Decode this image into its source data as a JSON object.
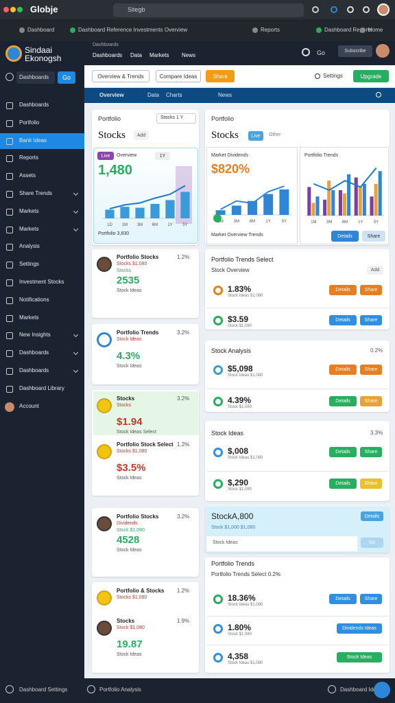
{
  "browser": {
    "tab": "Globje",
    "address": "Sitegb",
    "bookmarks": [
      "Dashboard",
      "Dashboard Reference Investments Overview",
      "Reports",
      "Dashboard Reports",
      "Home"
    ]
  },
  "sidebar": {
    "brand": "Sindaai",
    "brand_sub": "Ekonogsh",
    "search": "Dashboards",
    "search_badge": "Go",
    "active": 2,
    "items": [
      {
        "label": "Dashboards"
      },
      {
        "label": "Portfolio"
      },
      {
        "label": "Bank Ideas"
      },
      {
        "label": "Reports"
      },
      {
        "label": "Assets"
      },
      {
        "label": "Share Trends",
        "chevron": true
      },
      {
        "label": "Markets",
        "chevron": true
      },
      {
        "label": "Markets",
        "chevron": true
      },
      {
        "label": "Analysis"
      },
      {
        "label": "Settings"
      },
      {
        "label": "Investment Stocks"
      },
      {
        "label": "Notifications"
      },
      {
        "label": "Markets"
      },
      {
        "label": "New Insights",
        "chevron": true
      },
      {
        "label": "Dashboards",
        "chevron": true
      },
      {
        "label": "Dashboards",
        "chevron": true
      },
      {
        "label": "Dashboard Library"
      },
      {
        "label": "Account"
      }
    ]
  },
  "header": {
    "nav_top": "Dashboards",
    "nav": [
      "Dashboards",
      "Data",
      "Markets",
      "News"
    ],
    "lang": "Go",
    "subscribe": "Subscribe"
  },
  "toolbar": {
    "buttons": [
      "Overview & Trends",
      "Compare Ideas"
    ],
    "upgrade": "Share",
    "settings": "Settings",
    "action": "Upgrade"
  },
  "tabs": [
    "Overview",
    "Data",
    "Charts",
    "News"
  ],
  "portfolio_left": {
    "title": "Portfolio",
    "dropdown": "Stocks 1 Y",
    "heading": "Stocks",
    "add": "Add",
    "panel": {
      "badge": "Live",
      "title": "Overview",
      "range": "1Y",
      "value": "1,480",
      "footer": "Portfolio 3,830",
      "chart": {
        "type": "bar",
        "categories": [
          "1D",
          "1M",
          "3M",
          "6M",
          "1Y",
          "5Y"
        ],
        "values": [
          18,
          24,
          22,
          30,
          38,
          55
        ],
        "line": [
          20,
          28,
          32,
          42,
          50,
          68
        ],
        "ylim": [
          0,
          80
        ],
        "color": "#3a9bd9",
        "line_color": "#1e78c8"
      }
    }
  },
  "portfolio_right": {
    "title": "Portfolio",
    "heading": "Stocks",
    "badge": "Live",
    "other": "Other",
    "footer": "Market Overview Trends",
    "details": "Details",
    "share": "Share",
    "dividends": {
      "title": "Market Dividends",
      "value": "$820%",
      "chart": {
        "type": "bar",
        "categories": [
          "1M",
          "3M",
          "6M",
          "1Y",
          "5Y"
        ],
        "values": [
          10,
          20,
          30,
          45,
          55
        ],
        "line": [
          12,
          30,
          25,
          50,
          62
        ],
        "ylim": [
          0,
          80
        ],
        "color": "#2f86d6",
        "line_color": "#2f86d6"
      }
    },
    "trends": {
      "title": "Portfolio Trends",
      "chart": {
        "type": "grouped-bar",
        "categories": [
          "1M",
          "3M",
          "6M",
          "1Y",
          "5Y"
        ],
        "ylim": [
          0,
          80
        ],
        "series": [
          {
            "color": "#7b3fa0",
            "values": [
              45,
              25,
              40,
              60,
              30
            ]
          },
          {
            "color": "#e8a23a",
            "values": [
              20,
              55,
              35,
              45,
              50
            ]
          },
          {
            "color": "#2f86d6",
            "values": [
              30,
              40,
              65,
              50,
              70
            ]
          }
        ],
        "line": [
          50,
          40,
          55,
          45,
          75
        ],
        "line_color": "#1e78c8"
      }
    }
  },
  "stock_cards": [
    {
      "entries": [
        {
          "icon": "avatar",
          "title": "Portfolio Stocks",
          "sub": "Stocks $1,080",
          "sub2": "Stocks",
          "pct": "1.2%",
          "value": "2535",
          "note": "Stock Ideas"
        }
      ]
    },
    {
      "entries": [
        {
          "icon": "logo",
          "title": "Portfolio Trends",
          "sub": "Stock Ideas",
          "pct": "3.2%",
          "value": "4.3%",
          "note": "Stock Ideas"
        }
      ]
    },
    {
      "entries": [
        {
          "icon": "coin",
          "title": "Stocks",
          "sub": "Stocks",
          "pct": "3.2%",
          "value": "$1.94",
          "note": "Stock Ideas Select",
          "highlight": true
        },
        {
          "icon": "coin",
          "title": "Portfolio Stock Select",
          "sub": "Stocks $1,080",
          "pct": "1.2%",
          "value": "$3.5%",
          "note": "Stock Ideas"
        }
      ]
    },
    {
      "entries": [
        {
          "icon": "avatar",
          "title": "Portfolio Stocks",
          "sub": "Dividends",
          "sub2": "Stock $1,080",
          "pct": "3.2%",
          "value": "4528",
          "note": "Stock Ideas"
        }
      ]
    },
    {
      "entries": [
        {
          "icon": "coin",
          "title": "Portfolio & Stocks",
          "sub": "Stocks $1,080",
          "pct": "1.2%"
        },
        {
          "icon": "avatar",
          "title": "Stocks",
          "sub": "Stock $1,080",
          "pct": "1.9%",
          "value": "19.87",
          "note": "Stock Ideas"
        }
      ]
    }
  ],
  "list_cards": [
    {
      "title": "Portfolio Trends Select",
      "sub": "Stock Overview",
      "badge": "Add",
      "rows": [
        {
          "icon": "#e67e22",
          "value": "1.83%",
          "sub": "Stock Ideas $1,080",
          "buttons": [
            {
              "label": "Details",
              "color": "#e67e22"
            },
            {
              "label": "Share",
              "color": "#e67e22"
            }
          ]
        },
        {
          "icon": "#27ae60",
          "value": "$3.59",
          "sub": "Stock $1,080",
          "buttons": [
            {
              "label": "Details",
              "color": "#2f8fe0"
            },
            {
              "label": "Share",
              "color": "#2f8fe0"
            }
          ]
        }
      ]
    },
    {
      "title": "Stock Analysis",
      "pct": "0.2%",
      "rows": [
        {
          "icon": "#3aa0c8",
          "value": "$5,098",
          "sub": "Stock Ideas $1,080",
          "buttons": [
            {
              "label": "Details",
              "color": "#e67e22"
            },
            {
              "label": "Share",
              "color": "#e67e22"
            }
          ]
        },
        {
          "icon": "#27ae60",
          "value": "4.39%",
          "sub": "Stock $1,080",
          "buttons": [
            {
              "label": "Details",
              "color": "#27ae60"
            },
            {
              "label": "Share",
              "color": "#e8a23a"
            }
          ]
        }
      ]
    },
    {
      "title": "Stock Ideas",
      "pct": "3.3%",
      "rows": [
        {
          "icon": "#2f8fe0",
          "value": "$,008",
          "sub": "Stock Ideas $1,080",
          "buttons": [
            {
              "label": "Details",
              "color": "#27ae60"
            },
            {
              "label": "Share",
              "color": "#27ae60"
            }
          ]
        },
        {
          "icon": "#27ae60",
          "value": "$,290",
          "sub": "Stock $1,080",
          "buttons": [
            {
              "label": "Details",
              "color": "#27ae60"
            },
            {
              "label": "Share",
              "color": "#e8c030"
            }
          ]
        }
      ]
    },
    {
      "title": "Portfolio Trends",
      "sub": "Portfolio Trends Select 0.2%",
      "rows": [
        {
          "icon": "#27ae60",
          "value": "18.36%",
          "sub": "Stock Ideas $1,080",
          "buttons": [
            {
              "label": "Details",
              "color": "#2f8fe0"
            },
            {
              "label": "Share",
              "color": "#2f8fe0"
            }
          ]
        },
        {
          "icon": "#2f8fe0",
          "value": "1.80%",
          "sub": "Stock $1,080",
          "buttons": [
            {
              "label": "Dividends Ideas",
              "color": "#2f8fe0"
            }
          ]
        },
        {
          "icon": "#2f8fe0",
          "value": "4,358",
          "sub": "Stock Ideas $1,080",
          "buttons": [
            {
              "label": "Stock Ideas",
              "color": "#27ae60"
            }
          ]
        }
      ]
    }
  ],
  "highlight_card": {
    "title": "StockA,800",
    "sub": "Stock $1,000 $1,080",
    "button": "Details",
    "search": "Stock Ideas",
    "go": "Go"
  },
  "footer": {
    "left": "Dashboard Settings",
    "center": "Portfolio Analysis",
    "right": "Dashboard Ideas"
  }
}
